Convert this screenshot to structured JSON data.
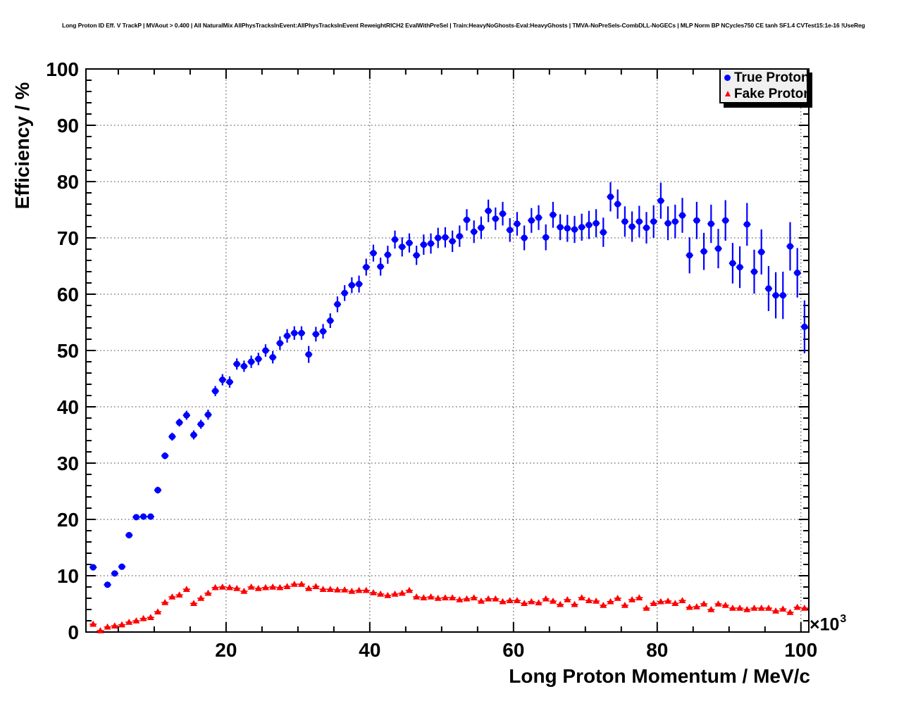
{
  "page": {
    "background": "#ffffff"
  },
  "chart_data": {
    "type": "scatter",
    "title": "Long Proton ID Eff. V TrackP | MVAout > 0.400 | All NaturalMix AllPhysTracksInEvent:AllPhysTracksInEvent ReweightRICH2 EvalWithPreSel | Train:HeavyNoGhosts-Eval:HeavyGhosts | TMVA-NoPreSels-CombDLL-NoGECs | MLP Norm BP NCycles750 CE tanh SF1.4 CVTest15:1e-16 !UseReg",
    "xlabel": "Long Proton Momentum / MeV/c",
    "ylabel": "Efficiency / %",
    "x_exponent": {
      "mantissa": "×10",
      "power": "3"
    },
    "x_units_note": "x values in units of 10^3 MeV/c",
    "xlim": [
      0.5,
      101.1
    ],
    "ylim": [
      0,
      100
    ],
    "x_major_ticks": [
      20,
      40,
      60,
      80,
      100
    ],
    "x_minor_step": 5,
    "y_major_ticks": [
      0,
      10,
      20,
      30,
      40,
      50,
      60,
      70,
      80,
      90,
      100
    ],
    "y_minor_step": 2,
    "grid": "dotted-at-major-ticks",
    "frame_color": "#000000",
    "legend": {
      "position": "top-right",
      "fill": "#f0f0f0",
      "border": "#000000",
      "shadow": true
    },
    "series": [
      {
        "name": "True Proton",
        "color": "#0000ff",
        "marker": "filled-circle",
        "marker_size": 4.6,
        "line_width": 2.2,
        "x_half_width": 0.5,
        "points": [
          [
            1.5,
            11.5,
            0.4
          ],
          [
            3.5,
            8.4,
            0.4
          ],
          [
            4.5,
            10.4,
            0.4
          ],
          [
            5.5,
            11.6,
            0.4
          ],
          [
            6.5,
            17.2,
            0.5
          ],
          [
            7.5,
            20.4,
            0.5
          ],
          [
            8.5,
            20.5,
            0.5
          ],
          [
            9.5,
            20.5,
            0.5
          ],
          [
            10.5,
            25.2,
            0.6
          ],
          [
            11.5,
            31.3,
            0.6
          ],
          [
            12.5,
            34.7,
            0.7
          ],
          [
            13.5,
            37.2,
            0.7
          ],
          [
            14.5,
            38.5,
            0.8
          ],
          [
            15.5,
            35.0,
            0.8
          ],
          [
            16.5,
            36.9,
            0.8
          ],
          [
            17.5,
            38.6,
            0.9
          ],
          [
            18.5,
            42.8,
            0.9
          ],
          [
            19.5,
            44.8,
            1.0
          ],
          [
            20.5,
            44.4,
            1.0
          ],
          [
            21.5,
            47.6,
            1.0
          ],
          [
            22.5,
            47.2,
            1.0
          ],
          [
            23.5,
            48.0,
            1.1
          ],
          [
            24.5,
            48.5,
            1.1
          ],
          [
            25.5,
            50.0,
            1.1
          ],
          [
            26.5,
            48.8,
            1.1
          ],
          [
            27.5,
            51.3,
            1.2
          ],
          [
            28.5,
            52.6,
            1.2
          ],
          [
            29.5,
            53.1,
            1.2
          ],
          [
            30.5,
            53.1,
            1.2
          ],
          [
            31.5,
            49.3,
            1.5
          ],
          [
            32.5,
            52.9,
            1.3
          ],
          [
            33.5,
            53.4,
            1.3
          ],
          [
            34.5,
            55.3,
            1.3
          ],
          [
            35.5,
            58.2,
            1.4
          ],
          [
            36.5,
            60.2,
            1.4
          ],
          [
            37.5,
            61.6,
            1.4
          ],
          [
            38.5,
            61.8,
            1.5
          ],
          [
            39.5,
            64.8,
            1.5
          ],
          [
            40.5,
            67.3,
            1.5
          ],
          [
            41.5,
            64.9,
            1.6
          ],
          [
            42.5,
            67.0,
            1.6
          ],
          [
            43.5,
            69.7,
            1.6
          ],
          [
            44.5,
            68.4,
            1.7
          ],
          [
            45.5,
            69.1,
            1.7
          ],
          [
            46.5,
            66.9,
            1.7
          ],
          [
            47.5,
            68.8,
            1.8
          ],
          [
            48.5,
            69.0,
            1.8
          ],
          [
            49.5,
            70.0,
            1.8
          ],
          [
            50.5,
            70.1,
            1.8
          ],
          [
            51.5,
            69.4,
            1.9
          ],
          [
            52.5,
            70.3,
            1.9
          ],
          [
            53.5,
            73.2,
            1.9
          ],
          [
            54.5,
            71.1,
            2.0
          ],
          [
            55.5,
            71.8,
            2.0
          ],
          [
            56.5,
            74.8,
            2.0
          ],
          [
            57.5,
            73.4,
            2.0
          ],
          [
            58.5,
            74.3,
            2.1
          ],
          [
            59.5,
            71.4,
            2.1
          ],
          [
            60.5,
            72.5,
            2.1
          ],
          [
            61.5,
            70.0,
            2.2
          ],
          [
            62.5,
            73.1,
            2.2
          ],
          [
            63.5,
            73.6,
            2.2
          ],
          [
            64.5,
            70.1,
            2.3
          ],
          [
            65.5,
            74.1,
            2.3
          ],
          [
            66.5,
            71.9,
            2.3
          ],
          [
            67.5,
            71.7,
            2.4
          ],
          [
            68.5,
            71.5,
            2.4
          ],
          [
            69.5,
            71.9,
            2.4
          ],
          [
            70.5,
            72.3,
            2.5
          ],
          [
            71.5,
            72.6,
            2.5
          ],
          [
            72.5,
            71.0,
            2.6
          ],
          [
            73.5,
            77.3,
            2.6
          ],
          [
            74.5,
            76.0,
            2.6
          ],
          [
            75.5,
            72.9,
            2.7
          ],
          [
            76.5,
            72.0,
            2.7
          ],
          [
            77.5,
            72.9,
            2.8
          ],
          [
            78.5,
            71.8,
            2.8
          ],
          [
            79.5,
            72.9,
            2.9
          ],
          [
            80.5,
            76.6,
            3.2
          ],
          [
            81.5,
            72.6,
            3.0
          ],
          [
            82.5,
            72.9,
            3.0
          ],
          [
            83.5,
            74.0,
            3.1
          ],
          [
            84.5,
            66.9,
            3.2
          ],
          [
            85.5,
            73.1,
            3.3
          ],
          [
            86.5,
            67.6,
            3.3
          ],
          [
            87.5,
            72.5,
            3.4
          ],
          [
            88.5,
            68.1,
            3.5
          ],
          [
            89.5,
            73.1,
            3.6
          ],
          [
            90.5,
            65.5,
            3.6
          ],
          [
            91.5,
            64.8,
            3.7
          ],
          [
            92.5,
            72.4,
            3.8
          ],
          [
            93.5,
            64.0,
            3.9
          ],
          [
            94.5,
            67.5,
            4.0
          ],
          [
            95.5,
            61.0,
            4.0
          ],
          [
            96.5,
            59.8,
            4.1
          ],
          [
            97.5,
            59.8,
            4.2
          ],
          [
            98.5,
            68.5,
            4.3
          ],
          [
            99.5,
            63.8,
            4.4
          ],
          [
            100.5,
            54.2,
            4.7
          ]
        ]
      },
      {
        "name": "Fake Proton",
        "color": "#ff0000",
        "marker": "filled-triangle",
        "marker_size": 5,
        "line_width": 1.6,
        "x_half_width": 0.5,
        "yerr_default": 0.3,
        "points": [
          [
            1.5,
            1.4
          ],
          [
            2.5,
            0.25
          ],
          [
            3.5,
            0.9
          ],
          [
            4.5,
            1.1
          ],
          [
            5.5,
            1.3
          ],
          [
            6.5,
            1.75
          ],
          [
            7.5,
            2.0
          ],
          [
            8.5,
            2.4
          ],
          [
            9.5,
            2.6
          ],
          [
            10.5,
            3.6
          ],
          [
            11.5,
            5.25
          ],
          [
            12.5,
            6.25
          ],
          [
            13.5,
            6.6
          ],
          [
            14.5,
            7.6
          ],
          [
            15.5,
            5.1
          ],
          [
            16.5,
            6.0
          ],
          [
            17.5,
            6.9
          ],
          [
            18.5,
            7.9
          ],
          [
            19.5,
            8.0
          ],
          [
            20.5,
            7.9
          ],
          [
            21.5,
            7.75
          ],
          [
            22.5,
            7.25
          ],
          [
            23.5,
            8.0
          ],
          [
            24.5,
            7.75
          ],
          [
            25.5,
            7.9
          ],
          [
            26.5,
            8.0
          ],
          [
            27.5,
            7.9
          ],
          [
            28.5,
            8.1
          ],
          [
            29.5,
            8.5
          ],
          [
            30.5,
            8.5
          ],
          [
            31.5,
            7.75
          ],
          [
            32.5,
            8.1
          ],
          [
            33.5,
            7.6
          ],
          [
            34.5,
            7.6
          ],
          [
            35.5,
            7.5
          ],
          [
            36.5,
            7.5
          ],
          [
            37.5,
            7.25
          ],
          [
            38.5,
            7.4
          ],
          [
            39.5,
            7.4
          ],
          [
            40.5,
            7.0
          ],
          [
            41.5,
            6.75
          ],
          [
            42.5,
            6.5
          ],
          [
            43.5,
            6.75
          ],
          [
            44.5,
            6.9
          ],
          [
            45.5,
            7.4
          ],
          [
            46.5,
            6.25
          ],
          [
            47.5,
            6.1
          ],
          [
            48.5,
            6.25
          ],
          [
            49.5,
            6.0
          ],
          [
            50.5,
            6.1
          ],
          [
            51.5,
            6.1
          ],
          [
            52.5,
            5.75
          ],
          [
            53.5,
            5.9
          ],
          [
            54.5,
            6.1
          ],
          [
            55.5,
            5.5
          ],
          [
            56.5,
            5.9
          ],
          [
            57.5,
            5.9
          ],
          [
            58.5,
            5.4
          ],
          [
            59.5,
            5.6
          ],
          [
            60.5,
            5.6
          ],
          [
            61.5,
            5.1
          ],
          [
            62.5,
            5.4
          ],
          [
            63.5,
            5.2
          ],
          [
            64.5,
            5.9
          ],
          [
            65.5,
            5.5
          ],
          [
            66.5,
            4.9
          ],
          [
            67.5,
            5.75
          ],
          [
            68.5,
            4.9
          ],
          [
            69.5,
            6.1
          ],
          [
            70.5,
            5.6
          ],
          [
            71.5,
            5.5
          ],
          [
            72.5,
            4.75
          ],
          [
            73.5,
            5.4
          ],
          [
            74.5,
            6.0
          ],
          [
            75.5,
            4.75
          ],
          [
            76.5,
            5.75
          ],
          [
            77.5,
            6.1
          ],
          [
            78.5,
            4.25
          ],
          [
            79.5,
            5.1
          ],
          [
            80.5,
            5.4
          ],
          [
            81.5,
            5.5
          ],
          [
            82.5,
            5.1
          ],
          [
            83.5,
            5.6
          ],
          [
            84.5,
            4.4
          ],
          [
            85.5,
            4.5
          ],
          [
            86.5,
            5.0
          ],
          [
            87.5,
            4.0
          ],
          [
            88.5,
            5.0
          ],
          [
            89.5,
            4.75
          ],
          [
            90.5,
            4.25
          ],
          [
            91.5,
            4.25
          ],
          [
            92.5,
            4.0
          ],
          [
            93.5,
            4.25
          ],
          [
            94.5,
            4.25
          ],
          [
            95.5,
            4.25
          ],
          [
            96.5,
            3.75
          ],
          [
            97.5,
            4.1
          ],
          [
            98.5,
            3.5
          ],
          [
            99.5,
            4.4
          ],
          [
            100.5,
            4.25
          ]
        ]
      }
    ]
  }
}
